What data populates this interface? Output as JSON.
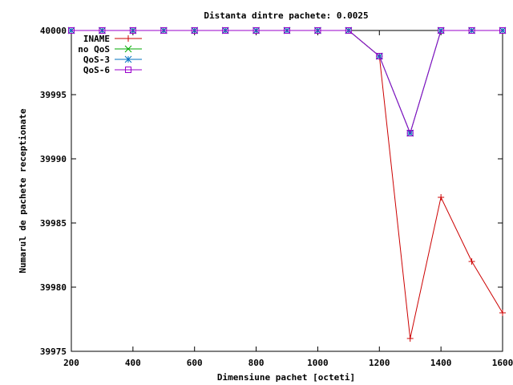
{
  "chart_data": {
    "type": "line",
    "title": "Distanta dintre pachete: 0.0025",
    "xlabel": "Dimensiune pachet [octeti]",
    "ylabel": "Numarul de pachete receptionate",
    "xlim": [
      200,
      1600
    ],
    "ylim": [
      39975,
      40000
    ],
    "xticks": [
      200,
      400,
      600,
      800,
      1000,
      1200,
      1400,
      1600
    ],
    "yticks": [
      39975,
      39980,
      39985,
      39990,
      39995,
      40000
    ],
    "x": [
      200,
      300,
      400,
      500,
      600,
      700,
      800,
      900,
      1000,
      1100,
      1200,
      1300,
      1400,
      1500,
      1600
    ],
    "legend_position": "top-left",
    "grid": false,
    "series": [
      {
        "name": "INAME",
        "color": "#cc0000",
        "marker": "plus",
        "values": [
          40000,
          40000,
          40000,
          40000,
          40000,
          40000,
          40000,
          40000,
          40000,
          40000,
          39998,
          39976,
          39987,
          39982,
          39978
        ]
      },
      {
        "name": "no QoS",
        "color": "#00aa00",
        "marker": "cross",
        "values": [
          40000,
          40000,
          40000,
          40000,
          40000,
          40000,
          40000,
          40000,
          40000,
          40000,
          39998,
          39992,
          40000,
          40000,
          40000
        ]
      },
      {
        "name": "QoS-3",
        "color": "#0070c0",
        "marker": "star",
        "values": [
          40000,
          40000,
          40000,
          40000,
          40000,
          40000,
          40000,
          40000,
          40000,
          40000,
          39998,
          39992,
          40000,
          40000,
          40000
        ]
      },
      {
        "name": "QoS-6",
        "color": "#9900cc",
        "marker": "square",
        "values": [
          40000,
          40000,
          40000,
          40000,
          40000,
          40000,
          40000,
          40000,
          40000,
          40000,
          39998,
          39992,
          40000,
          40000,
          40000
        ]
      }
    ]
  }
}
